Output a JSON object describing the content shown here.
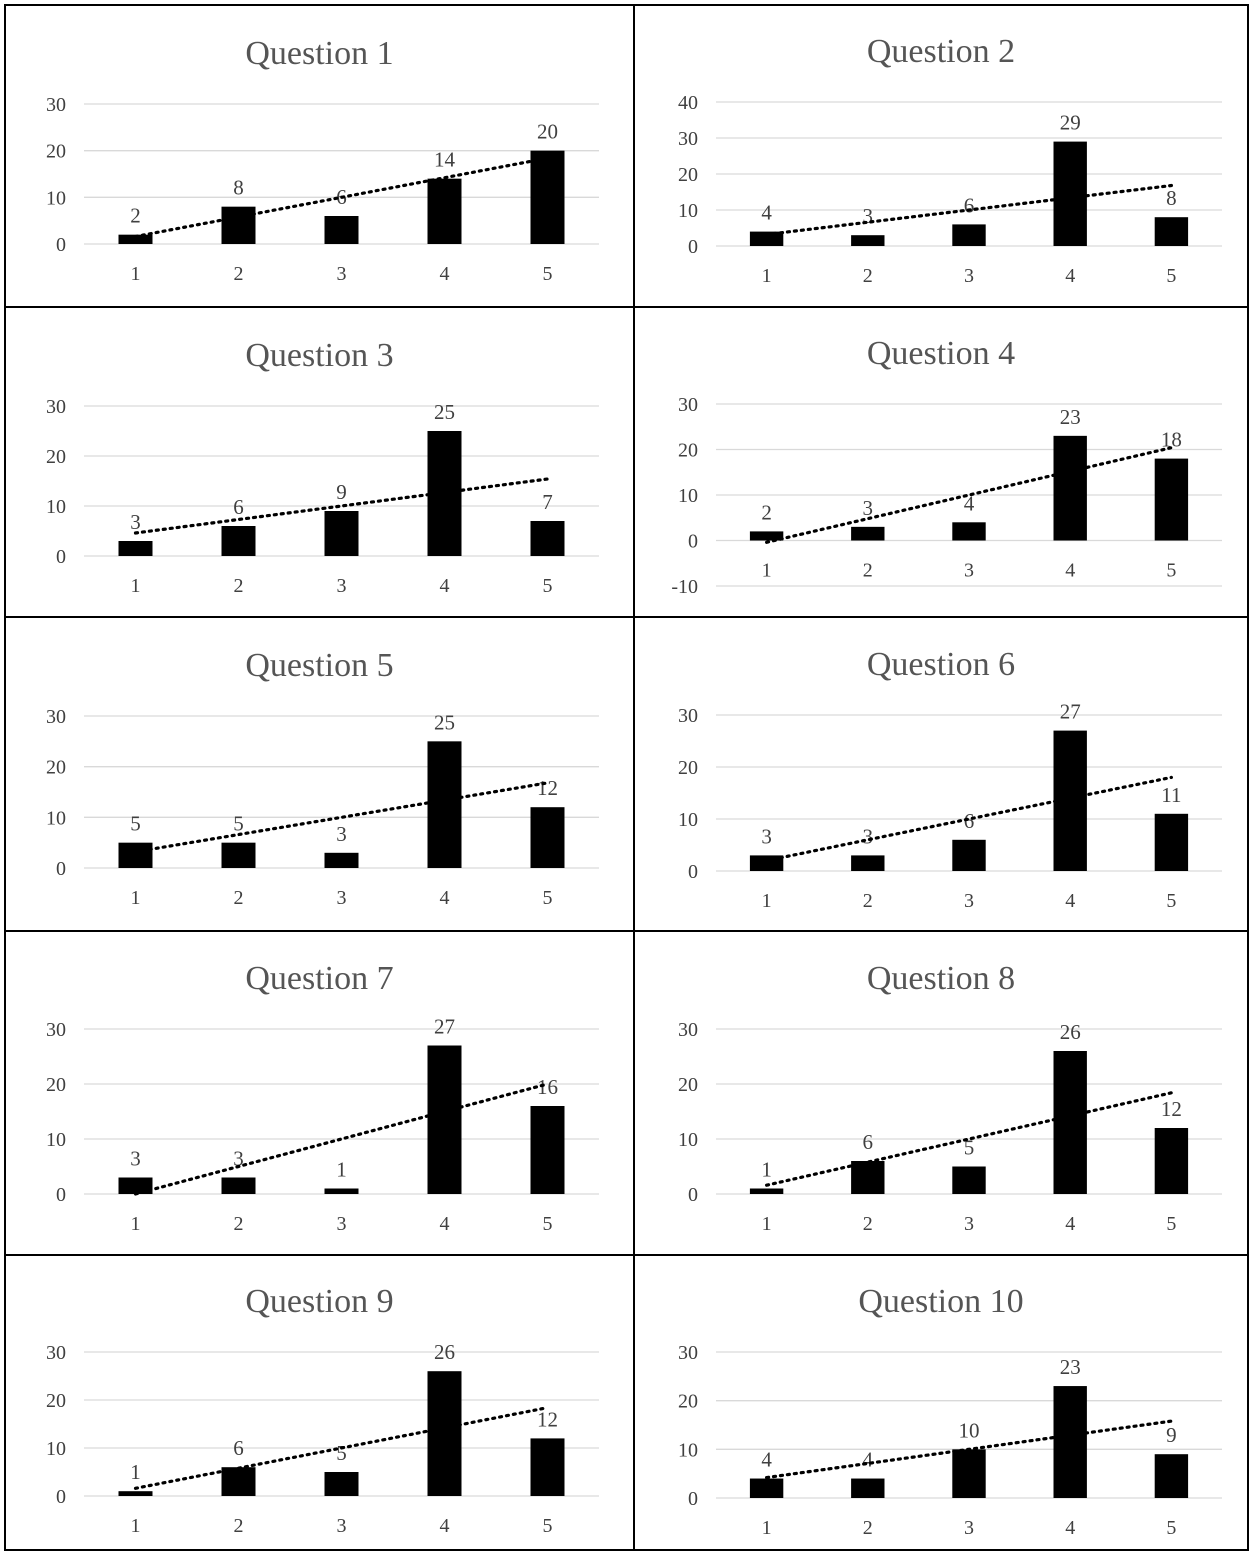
{
  "colors": {
    "bar": "#000000",
    "gridline": "#d9d9d9",
    "title": "#555555",
    "text": "#404040",
    "trendline": "#000000"
  },
  "chart_data": [
    {
      "type": "bar",
      "title": "Question 1",
      "categories": [
        "1",
        "2",
        "3",
        "4",
        "5"
      ],
      "values": [
        2,
        8,
        6,
        14,
        20
      ],
      "ylim": [
        0,
        30
      ],
      "yticks": [
        "0",
        "10",
        "20",
        "30"
      ],
      "trendline": "linear",
      "grid": true
    },
    {
      "type": "bar",
      "title": "Question 2",
      "categories": [
        "1",
        "2",
        "3",
        "4",
        "5"
      ],
      "values": [
        4,
        3,
        6,
        29,
        8
      ],
      "ylim": [
        0,
        40
      ],
      "yticks": [
        "0",
        "10",
        "20",
        "30",
        "40"
      ],
      "trendline": "linear",
      "grid": true
    },
    {
      "type": "bar",
      "title": "Question 3",
      "categories": [
        "1",
        "2",
        "3",
        "4",
        "5"
      ],
      "values": [
        3,
        6,
        9,
        25,
        7
      ],
      "ylim": [
        0,
        30
      ],
      "yticks": [
        "0",
        "10",
        "20",
        "30"
      ],
      "trendline": "linear",
      "grid": true
    },
    {
      "type": "bar",
      "title": "Question 4",
      "categories": [
        "1",
        "2",
        "3",
        "4",
        "5"
      ],
      "values": [
        2,
        3,
        4,
        23,
        18
      ],
      "ylim": [
        -10,
        30
      ],
      "yticks": [
        "-10",
        "0",
        "10",
        "20",
        "30"
      ],
      "trendline": "linear",
      "grid": true
    },
    {
      "type": "bar",
      "title": "Question 5",
      "categories": [
        "1",
        "2",
        "3",
        "4",
        "5"
      ],
      "values": [
        5,
        5,
        3,
        25,
        12
      ],
      "ylim": [
        0,
        30
      ],
      "yticks": [
        "0",
        "10",
        "20",
        "30"
      ],
      "trendline": "linear",
      "grid": true
    },
    {
      "type": "bar",
      "title": "Question 6",
      "categories": [
        "1",
        "2",
        "3",
        "4",
        "5"
      ],
      "values": [
        3,
        3,
        6,
        27,
        11
      ],
      "ylim": [
        0,
        30
      ],
      "yticks": [
        "0",
        "10",
        "20",
        "30"
      ],
      "trendline": "linear",
      "grid": true
    },
    {
      "type": "bar",
      "title": "Question 7",
      "categories": [
        "1",
        "2",
        "3",
        "4",
        "5"
      ],
      "values": [
        3,
        3,
        1,
        27,
        16
      ],
      "ylim": [
        0,
        30
      ],
      "yticks": [
        "0",
        "10",
        "20",
        "30"
      ],
      "trendline": "linear",
      "grid": true
    },
    {
      "type": "bar",
      "title": "Question 8",
      "categories": [
        "1",
        "2",
        "3",
        "4",
        "5"
      ],
      "values": [
        1,
        6,
        5,
        26,
        12
      ],
      "ylim": [
        0,
        30
      ],
      "yticks": [
        "0",
        "10",
        "20",
        "30"
      ],
      "trendline": "linear",
      "grid": true
    },
    {
      "type": "bar",
      "title": "Question 9",
      "categories": [
        "1",
        "2",
        "3",
        "4",
        "5"
      ],
      "values": [
        1,
        6,
        5,
        26,
        12
      ],
      "ylim": [
        0,
        30
      ],
      "yticks": [
        "0",
        "10",
        "20",
        "30"
      ],
      "trendline": "linear",
      "grid": true
    },
    {
      "type": "bar",
      "title": "Question 10",
      "categories": [
        "1",
        "2",
        "3",
        "4",
        "5"
      ],
      "values": [
        4,
        4,
        10,
        23,
        9
      ],
      "ylim": [
        0,
        30
      ],
      "yticks": [
        "0",
        "10",
        "20",
        "30"
      ],
      "trendline": "linear",
      "grid": true
    }
  ]
}
